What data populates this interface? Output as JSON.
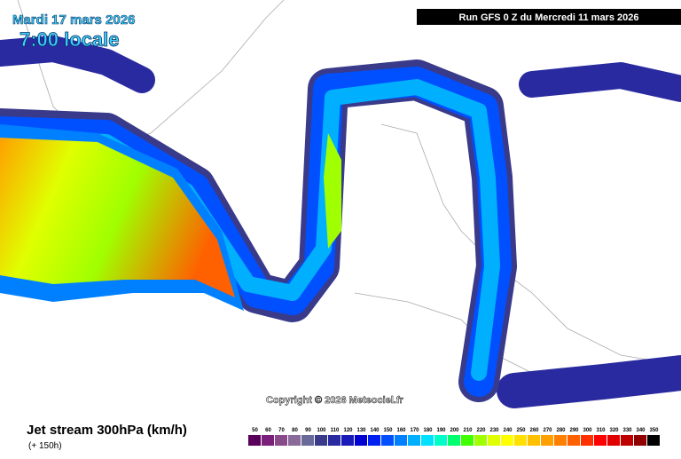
{
  "header": {
    "valid_date": "Mardi 17 mars 2026",
    "local_time": "7:00 locale",
    "run": "Run GFS 0 Z du Mercredi 11 mars 2026"
  },
  "copyright": "Copyright © 2026 Meteociel.fr",
  "footer": {
    "title": "Jet stream 300hPa (km/h)",
    "lead": "(+ 150h)"
  },
  "legend": {
    "values": [
      50,
      60,
      70,
      80,
      90,
      100,
      110,
      120,
      130,
      140,
      150,
      160,
      170,
      180,
      190,
      200,
      210,
      220,
      230,
      240,
      250,
      260,
      270,
      280,
      290,
      300,
      310,
      320,
      330,
      340,
      350
    ],
    "colors": [
      "#5a005a",
      "#7a207a",
      "#8a4a8a",
      "#8a6a9a",
      "#6a6a9a",
      "#3a3a8a",
      "#2a2aa0",
      "#1a1ab8",
      "#0000d0",
      "#0020f0",
      "#0050ff",
      "#0080ff",
      "#00b0ff",
      "#00e0ff",
      "#00ffc8",
      "#00ff70",
      "#40ff00",
      "#a0ff00",
      "#e0ff00",
      "#ffff00",
      "#ffe000",
      "#ffc000",
      "#ffa000",
      "#ff8000",
      "#ff6000",
      "#ff3000",
      "#ff0000",
      "#e00000",
      "#c00000",
      "#900000",
      "#000000"
    ]
  }
}
